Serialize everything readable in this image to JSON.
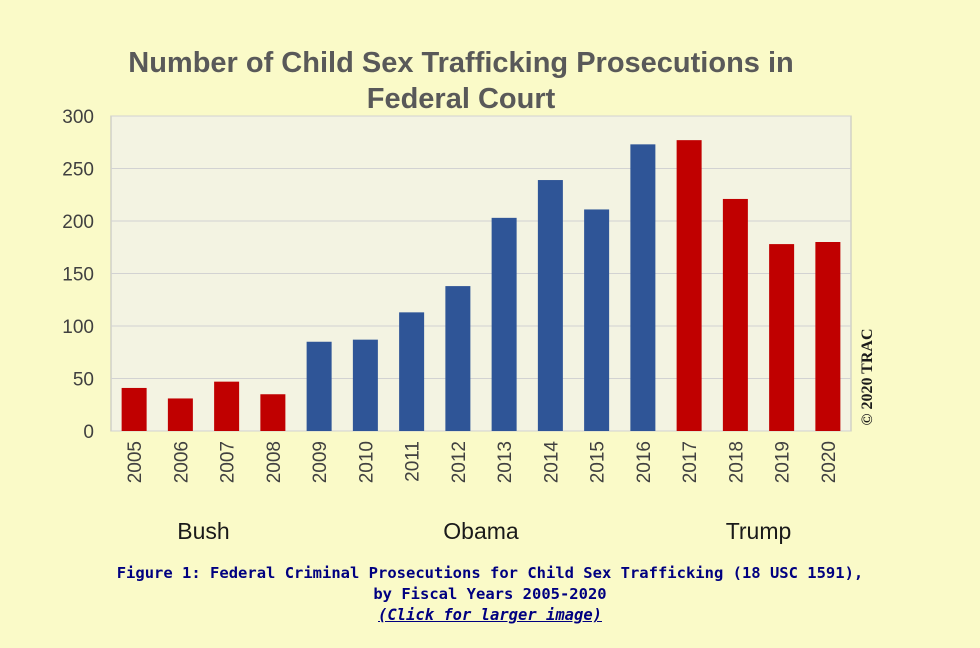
{
  "chart_data": {
    "type": "bar",
    "title_lines": [
      "Number of Child Sex Trafficking Prosecutions in",
      "Federal Court"
    ],
    "categories": [
      "2005",
      "2006",
      "2007",
      "2008",
      "2009",
      "2010",
      "2011",
      "2012",
      "2013",
      "2014",
      "2015",
      "2016",
      "2017",
      "2018",
      "2019",
      "2020"
    ],
    "values": [
      41,
      31,
      47,
      35,
      85,
      87,
      113,
      138,
      203,
      239,
      211,
      273,
      277,
      221,
      178,
      180
    ],
    "bar_groups": [
      "Bush",
      "Bush",
      "Bush",
      "Bush",
      "Obama",
      "Obama",
      "Obama",
      "Obama",
      "Obama",
      "Obama",
      "Obama",
      "Obama",
      "Trump",
      "Trump",
      "Trump",
      "Trump"
    ],
    "colors": {
      "Bush": "#c00000",
      "Obama": "#2f5597",
      "Trump": "#c00000"
    },
    "group_labels": [
      {
        "text": "Bush",
        "center_index": 1.5
      },
      {
        "text": "Obama",
        "center_index": 7.5
      },
      {
        "text": "Trump",
        "center_index": 13.5
      }
    ],
    "yticks": [
      "0",
      "50",
      "100",
      "150",
      "200",
      "250",
      "300"
    ],
    "ylim": [
      0,
      300
    ],
    "grid": true,
    "plot_background": "#f3f3e2",
    "copyright": "© 2020 TRAC"
  },
  "caption": {
    "line1": "Figure 1: Federal Criminal Prosecutions for Child Sex Trafficking (18 USC 1591),",
    "line2": "by Fiscal Years 2005-2020",
    "link": "(Click for larger image)"
  }
}
